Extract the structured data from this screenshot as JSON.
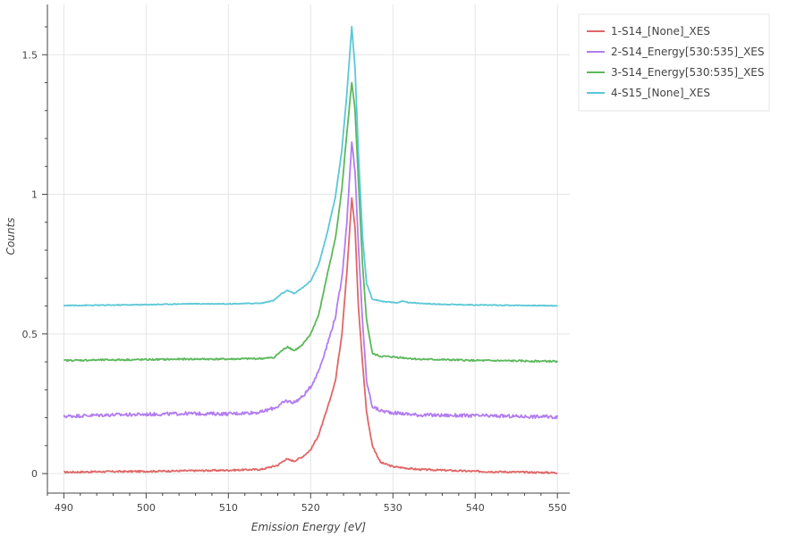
{
  "chart_data": {
    "type": "line",
    "title": "",
    "xlabel": "Emission Energy [eV]",
    "ylabel": "Counts",
    "xlim": [
      488,
      551.5
    ],
    "ylim": [
      -0.07,
      1.68
    ],
    "xticks": [
      490,
      500,
      510,
      520,
      530,
      540,
      550
    ],
    "xtick_labels": [
      "490",
      "500",
      "510",
      "520",
      "530",
      "540",
      "550"
    ],
    "yticks": [
      0,
      0.5,
      1,
      1.5
    ],
    "ytick_labels": [
      "0",
      "0.5",
      "1",
      "1.5"
    ],
    "grid": true,
    "legend_position": "top-right",
    "series": [
      {
        "name": "1-S14_[None]_XES",
        "color": "#e06666",
        "noise": 0.003,
        "points": [
          [
            490,
            0.005
          ],
          [
            495,
            0.007
          ],
          [
            500,
            0.008
          ],
          [
            505,
            0.01
          ],
          [
            510,
            0.012
          ],
          [
            514,
            0.015
          ],
          [
            516,
            0.03
          ],
          [
            517,
            0.052
          ],
          [
            518,
            0.045
          ],
          [
            519,
            0.06
          ],
          [
            520,
            0.085
          ],
          [
            521,
            0.14
          ],
          [
            522,
            0.23
          ],
          [
            523,
            0.33
          ],
          [
            523.8,
            0.5
          ],
          [
            524.4,
            0.72
          ],
          [
            525,
            0.99
          ],
          [
            525.4,
            0.88
          ],
          [
            525.8,
            0.6
          ],
          [
            526.3,
            0.4
          ],
          [
            526.8,
            0.22
          ],
          [
            527.5,
            0.1
          ],
          [
            528.5,
            0.04
          ],
          [
            530,
            0.025
          ],
          [
            533,
            0.015
          ],
          [
            540,
            0.008
          ],
          [
            550,
            0.003
          ]
        ]
      },
      {
        "name": "2-S14_Energy[530:535]_XES",
        "color": "#b27cf0",
        "noise": 0.006,
        "points": [
          [
            490,
            0.205
          ],
          [
            495,
            0.21
          ],
          [
            500,
            0.212
          ],
          [
            505,
            0.215
          ],
          [
            510,
            0.214
          ],
          [
            514,
            0.22
          ],
          [
            516,
            0.24
          ],
          [
            517,
            0.26
          ],
          [
            518,
            0.255
          ],
          [
            519,
            0.275
          ],
          [
            520,
            0.31
          ],
          [
            521,
            0.37
          ],
          [
            522,
            0.46
          ],
          [
            523,
            0.56
          ],
          [
            523.8,
            0.7
          ],
          [
            524.4,
            0.9
          ],
          [
            525,
            1.19
          ],
          [
            525.4,
            1.08
          ],
          [
            525.8,
            0.82
          ],
          [
            526.3,
            0.55
          ],
          [
            526.8,
            0.33
          ],
          [
            527.5,
            0.24
          ],
          [
            528.5,
            0.225
          ],
          [
            530,
            0.218
          ],
          [
            533,
            0.21
          ],
          [
            540,
            0.207
          ],
          [
            550,
            0.203
          ]
        ]
      },
      {
        "name": "3-S14_Energy[530:535]_XES",
        "color": "#5cb85c",
        "noise": 0.003,
        "points": [
          [
            490,
            0.405
          ],
          [
            495,
            0.407
          ],
          [
            500,
            0.408
          ],
          [
            505,
            0.41
          ],
          [
            510,
            0.41
          ],
          [
            514,
            0.412
          ],
          [
            515.5,
            0.415
          ],
          [
            516.5,
            0.44
          ],
          [
            517.2,
            0.455
          ],
          [
            518,
            0.44
          ],
          [
            519,
            0.46
          ],
          [
            520,
            0.5
          ],
          [
            521,
            0.57
          ],
          [
            522,
            0.71
          ],
          [
            523,
            0.84
          ],
          [
            523.8,
            1.02
          ],
          [
            524.4,
            1.22
          ],
          [
            525,
            1.4
          ],
          [
            525.4,
            1.3
          ],
          [
            525.8,
            1.05
          ],
          [
            526.3,
            0.75
          ],
          [
            526.8,
            0.55
          ],
          [
            527.5,
            0.43
          ],
          [
            528.5,
            0.42
          ],
          [
            530,
            0.418
          ],
          [
            533,
            0.41
          ],
          [
            540,
            0.405
          ],
          [
            550,
            0.402
          ]
        ]
      },
      {
        "name": "4-S15_[None]_XES",
        "color": "#5bc8d6",
        "noise": 0.0015,
        "points": [
          [
            490,
            0.602
          ],
          [
            495,
            0.603
          ],
          [
            500,
            0.605
          ],
          [
            505,
            0.608
          ],
          [
            510,
            0.608
          ],
          [
            514,
            0.61
          ],
          [
            515.5,
            0.62
          ],
          [
            516.5,
            0.645
          ],
          [
            517.2,
            0.655
          ],
          [
            518,
            0.645
          ],
          [
            519,
            0.665
          ],
          [
            520,
            0.69
          ],
          [
            521,
            0.75
          ],
          [
            522,
            0.86
          ],
          [
            523,
            0.99
          ],
          [
            523.8,
            1.16
          ],
          [
            524.4,
            1.36
          ],
          [
            525,
            1.6
          ],
          [
            525.4,
            1.45
          ],
          [
            525.8,
            1.15
          ],
          [
            526.3,
            0.85
          ],
          [
            526.8,
            0.68
          ],
          [
            527.5,
            0.625
          ],
          [
            529,
            0.615
          ],
          [
            530.5,
            0.612
          ],
          [
            531.3,
            0.618
          ],
          [
            532,
            0.612
          ],
          [
            535,
            0.607
          ],
          [
            540,
            0.604
          ],
          [
            550,
            0.601
          ]
        ]
      }
    ]
  }
}
